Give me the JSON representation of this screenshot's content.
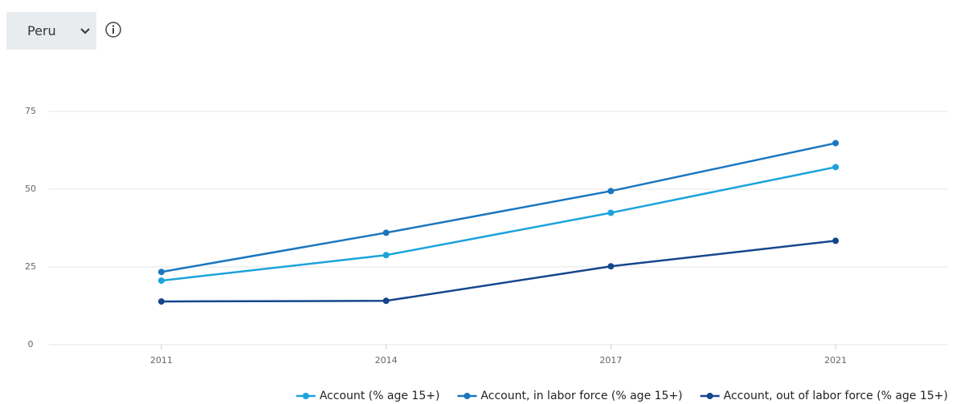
{
  "dropdown": {
    "selected": "Peru"
  },
  "chart_data": {
    "type": "line",
    "categories": [
      "2011",
      "2014",
      "2017",
      "2021"
    ],
    "series": [
      {
        "name": "Account (% age 15+)",
        "color": "#1ba3dc",
        "values": [
          20.6,
          28.8,
          42.4,
          57.1
        ]
      },
      {
        "name": "Account, in labor force (% age 15+)",
        "color": "#1a76bf",
        "values": [
          23.4,
          36.0,
          49.4,
          64.8
        ]
      },
      {
        "name": "Account, out of labor force (% age 15+)",
        "color": "#15468c",
        "values": [
          13.9,
          14.1,
          25.2,
          33.4
        ]
      }
    ],
    "ylim": [
      0,
      75
    ],
    "yticks": [
      0,
      25,
      50,
      75
    ],
    "grid": true,
    "legend": "bottom"
  }
}
